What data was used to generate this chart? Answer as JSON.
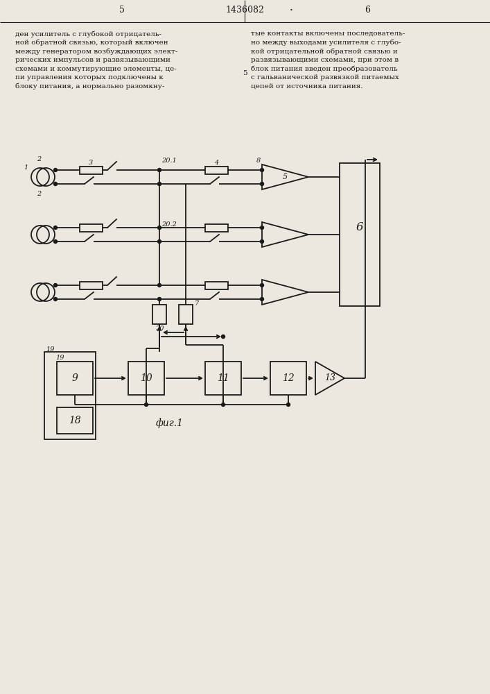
{
  "bg_color": "#ede8df",
  "line_color": "#1a1a1a",
  "page_left": "5",
  "page_right": "6",
  "patent_number": "1436082",
  "fig_label": "фиг.1",
  "header_text_left": "ден усилитель с глубокой отрицатель-\nной обратной связью, который включен\nмежду генератором возбуждающих элект-\nрических импульсов и развязывающими\nсхемами и коммутирующие элементы, це-\nпи управления которых подключены к\nблоку питания, а нормально разомкну-",
  "header_text_right": "тые контакты включены последователь-\nно между выходами усилителя с глубо-\nкой отрицательной обратной связью и\nразвязывающими схемами, при этом в\nблок питания введен преобразователь\nс гальванической развязкой питаемых\nцепей от источника питания.",
  "num5_marker": "5",
  "lw": 1.3
}
